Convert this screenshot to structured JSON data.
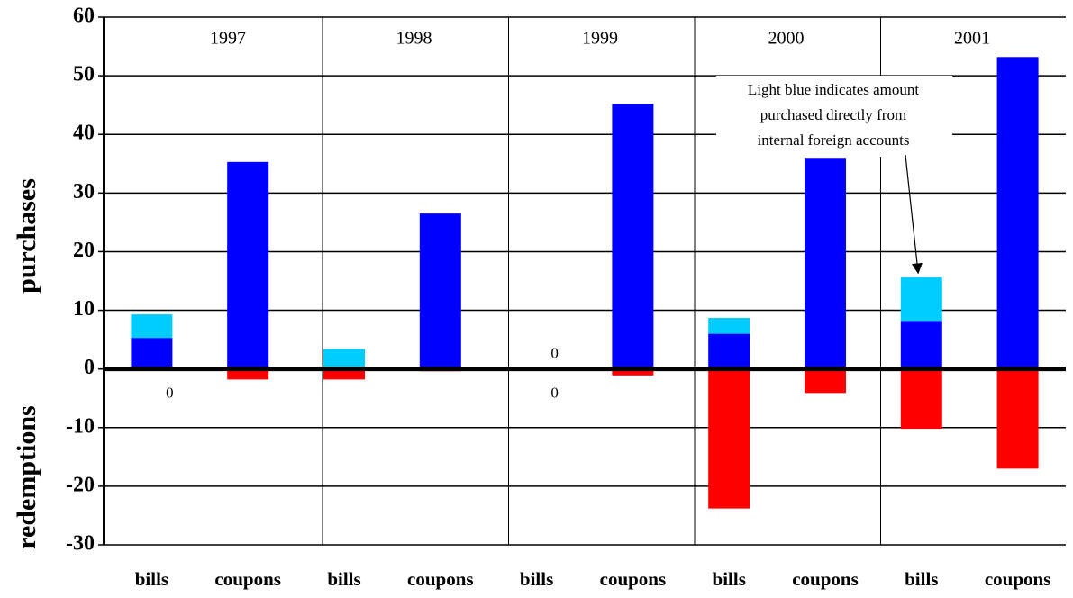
{
  "chart_data": {
    "type": "bar",
    "y_label_upper": "purchases",
    "y_label_lower": "redemptions",
    "groups": [
      "1997",
      "1998",
      "1999",
      "2000",
      "2001"
    ],
    "categories": [
      "bills",
      "coupons",
      "bills",
      "coupons",
      "bills",
      "coupons",
      "bills",
      "coupons",
      "bills",
      "coupons"
    ],
    "series": [
      {
        "color": "#0000ff",
        "values": [
          5.3,
          35.3,
          0,
          26.5,
          0,
          45.2,
          6.0,
          36.0,
          8.2,
          53.2
        ],
        "value_labels": [
          null,
          null,
          null,
          null,
          "0",
          null,
          null,
          null,
          null,
          null
        ]
      },
      {
        "color": "#00ccff",
        "values": [
          4.0,
          0,
          3.4,
          0,
          0,
          0,
          2.7,
          0,
          7.4,
          0
        ]
      },
      {
        "color": "#ff0000",
        "values": [
          0,
          -1.8,
          -1.8,
          -0.4,
          0,
          -1.1,
          -23.8,
          -4.1,
          -10.2,
          -17.0
        ],
        "value_labels": [
          "0",
          null,
          null,
          null,
          "0",
          null,
          null,
          null,
          null,
          null
        ]
      }
    ],
    "annotation": [
      "Light blue indicates amount",
      "purchased directly from",
      "internal foreign accounts"
    ],
    "ylim": [
      -30,
      60
    ],
    "yticks": [
      -30,
      -20,
      -10,
      0,
      10,
      20,
      30,
      40,
      50,
      60
    ],
    "grid": true
  }
}
